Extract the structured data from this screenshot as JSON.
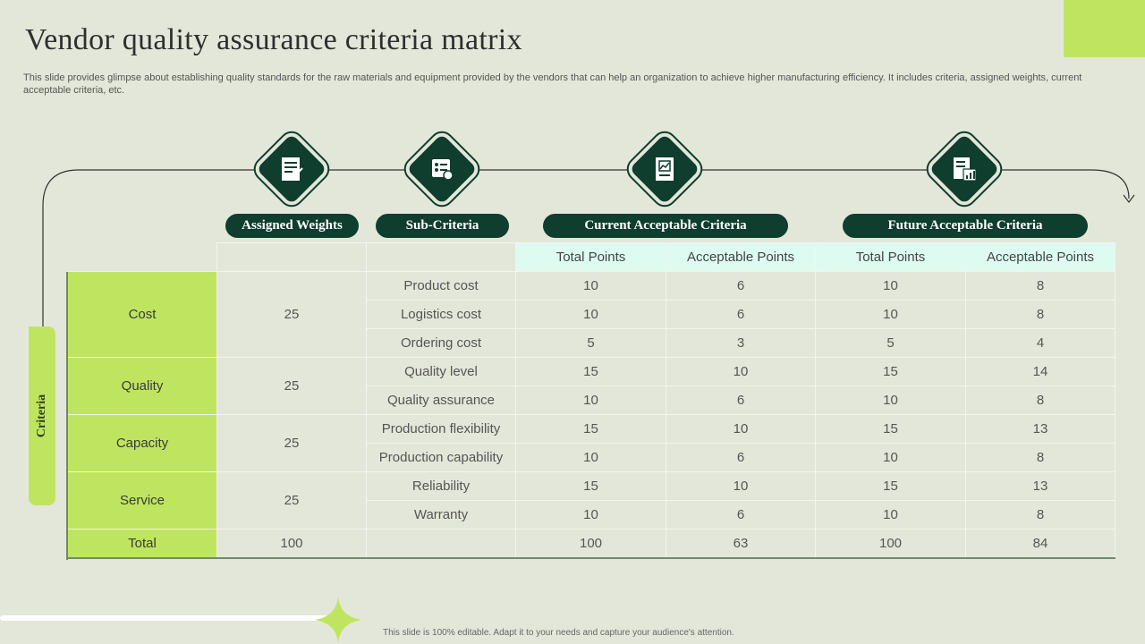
{
  "title": "Vendor quality assurance criteria matrix",
  "description": "This slide provides glimpse about establishing quality standards for the raw materials and equipment provided by the vendors that can help an organization to achieve higher manufacturing efficiency. It includes criteria, assigned weights, current acceptable criteria, etc.",
  "side_tab": "Criteria",
  "headers": {
    "assigned_weights": "Assigned Weights",
    "sub_criteria": "Sub-Criteria",
    "current": "Current Acceptable Criteria",
    "future": "Future Acceptable Criteria"
  },
  "subheaders": [
    "Total Points",
    "Acceptable Points",
    "Total Points",
    "Acceptable Points"
  ],
  "groups": [
    {
      "name": "Cost",
      "weight": "25",
      "rows": [
        {
          "sub": "Product cost",
          "ct": "10",
          "ca": "6",
          "ft": "10",
          "fa": "8"
        },
        {
          "sub": "Logistics cost",
          "ct": "10",
          "ca": "6",
          "ft": "10",
          "fa": "8"
        },
        {
          "sub": "Ordering cost",
          "ct": "5",
          "ca": "3",
          "ft": "5",
          "fa": "4"
        }
      ]
    },
    {
      "name": "Quality",
      "weight": "25",
      "rows": [
        {
          "sub": "Quality level",
          "ct": "15",
          "ca": "10",
          "ft": "15",
          "fa": "14"
        },
        {
          "sub": "Quality assurance",
          "ct": "10",
          "ca": "6",
          "ft": "10",
          "fa": "8"
        }
      ]
    },
    {
      "name": "Capacity",
      "weight": "25",
      "rows": [
        {
          "sub": "Production flexibility",
          "ct": "15",
          "ca": "10",
          "ft": "15",
          "fa": "13"
        },
        {
          "sub": "Production capability",
          "ct": "10",
          "ca": "6",
          "ft": "10",
          "fa": "8"
        }
      ]
    },
    {
      "name": "Service",
      "weight": "25",
      "rows": [
        {
          "sub": "Reliability",
          "ct": "15",
          "ca": "10",
          "ft": "15",
          "fa": "13"
        },
        {
          "sub": "Warranty",
          "ct": "10",
          "ca": "6",
          "ft": "10",
          "fa": "8"
        }
      ]
    }
  ],
  "total": {
    "label": "Total",
    "weight": "100",
    "sub": "",
    "ct": "100",
    "ca": "63",
    "ft": "100",
    "fa": "84"
  },
  "icons": [
    "weights-document-icon",
    "checklist-icon",
    "report-chart-icon",
    "analysis-report-icon"
  ],
  "footer": "This slide is 100% editable. Adapt it to your needs and capture your audience's attention.",
  "colors": {
    "accent": "#bfe560",
    "dark": "#0f3d2e",
    "background": "#e3e7d9",
    "header_cell": "#ddfbf1"
  }
}
